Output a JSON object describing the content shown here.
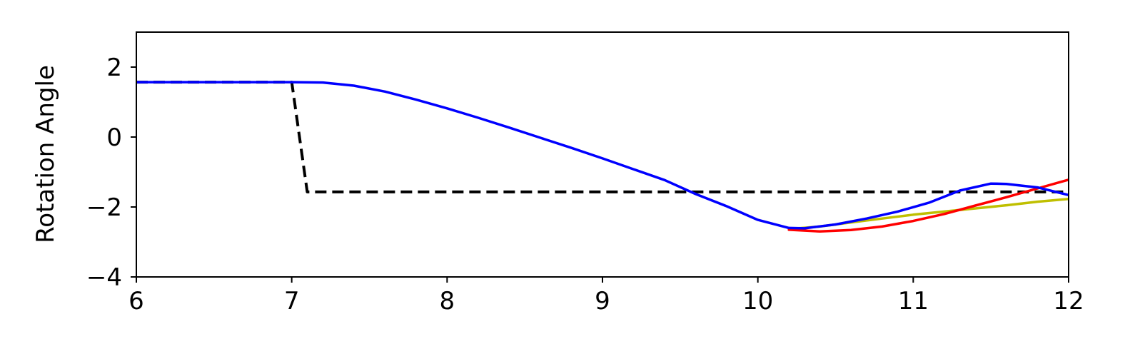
{
  "chart_data": {
    "type": "line",
    "title": "",
    "xlabel": "",
    "ylabel": "Rotation Angle",
    "xlim": [
      6,
      12
    ],
    "ylim": [
      -4,
      3
    ],
    "xticks": [
      6,
      7,
      8,
      9,
      10,
      11,
      12
    ],
    "xtick_labels": [
      "6",
      "7",
      "8",
      "9",
      "10",
      "11",
      "12"
    ],
    "yticks": [
      -4,
      -2,
      0,
      2
    ],
    "ytick_labels": [
      "−4",
      "−2",
      "0",
      "2"
    ],
    "grid": false,
    "series": [
      {
        "name": "reference-dashed",
        "color": "#000000",
        "style": "dashed",
        "x": [
          6,
          7.0,
          7.1,
          12
        ],
        "y": [
          1.57,
          1.57,
          -1.57,
          -1.57
        ]
      },
      {
        "name": "prediction-yellow",
        "color": "#bfbf00",
        "style": "solid",
        "x": [
          10.2,
          10.4,
          10.6,
          10.8,
          11.0,
          11.2,
          11.4,
          11.6,
          11.8,
          12.0
        ],
        "y": [
          -2.63,
          -2.56,
          -2.44,
          -2.33,
          -2.22,
          -2.13,
          -2.04,
          -1.95,
          -1.85,
          -1.77
        ]
      },
      {
        "name": "prediction-red",
        "color": "#ff0000",
        "style": "solid",
        "x": [
          10.2,
          10.4,
          10.6,
          10.8,
          11.0,
          11.2,
          11.4,
          11.6,
          11.8,
          12.0
        ],
        "y": [
          -2.65,
          -2.7,
          -2.66,
          -2.56,
          -2.4,
          -2.2,
          -1.96,
          -1.72,
          -1.47,
          -1.22
        ]
      },
      {
        "name": "trajectory-blue",
        "color": "#0000ff",
        "style": "solid",
        "x": [
          6,
          6.5,
          7.0,
          7.2,
          7.4,
          7.6,
          7.8,
          8.0,
          8.2,
          8.4,
          8.6,
          8.8,
          9.0,
          9.2,
          9.4,
          9.6,
          9.8,
          10.0,
          10.2,
          10.3,
          10.5,
          10.7,
          10.9,
          11.1,
          11.3,
          11.5,
          11.6,
          11.8,
          12.0
        ],
        "y": [
          1.57,
          1.57,
          1.57,
          1.56,
          1.47,
          1.3,
          1.07,
          0.82,
          0.55,
          0.27,
          -0.02,
          -0.31,
          -0.61,
          -0.92,
          -1.23,
          -1.63,
          -1.98,
          -2.37,
          -2.6,
          -2.61,
          -2.5,
          -2.33,
          -2.13,
          -1.88,
          -1.53,
          -1.33,
          -1.34,
          -1.44,
          -1.66
        ]
      }
    ]
  }
}
